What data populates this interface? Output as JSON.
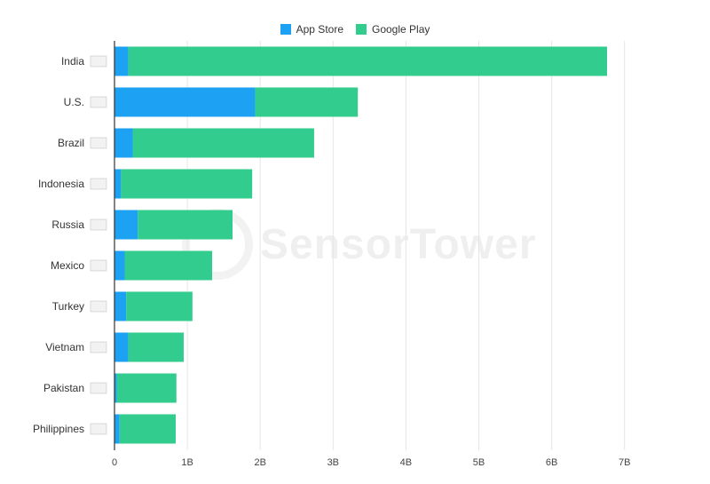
{
  "legend": {
    "app_store": "App Store",
    "google_play": "Google Play"
  },
  "watermark": "SensorTower",
  "colors": {
    "app_store": "#1da1f2",
    "google_play": "#33cc8f",
    "grid": "#e6e6e6",
    "axis": "#333333"
  },
  "chart_data": {
    "type": "bar",
    "orientation": "horizontal",
    "stacked": true,
    "categories": [
      "India",
      "U.S.",
      "Brazil",
      "Indonesia",
      "Russia",
      "Mexico",
      "Turkey",
      "Vietnam",
      "Pakistan",
      "Philippines"
    ],
    "flag_icons": [
      "india-flag-icon",
      "us-flag-icon",
      "brazil-flag-icon",
      "indonesia-flag-icon",
      "russia-flag-icon",
      "mexico-flag-icon",
      "turkey-flag-icon",
      "vietnam-flag-icon",
      "pakistan-flag-icon",
      "philippines-flag-icon"
    ],
    "series": [
      {
        "name": "App Store",
        "values": [
          0.19,
          1.93,
          0.25,
          0.09,
          0.32,
          0.14,
          0.16,
          0.19,
          0.03,
          0.07
        ]
      },
      {
        "name": "Google Play",
        "values": [
          6.57,
          1.41,
          2.49,
          1.8,
          1.3,
          1.2,
          0.91,
          0.76,
          0.82,
          0.77
        ]
      }
    ],
    "xlim": [
      0,
      7
    ],
    "xticks": [
      "0",
      "1B",
      "2B",
      "3B",
      "4B",
      "5B",
      "6B",
      "7B"
    ],
    "grid": "vertical",
    "legend_position": "top-center"
  }
}
